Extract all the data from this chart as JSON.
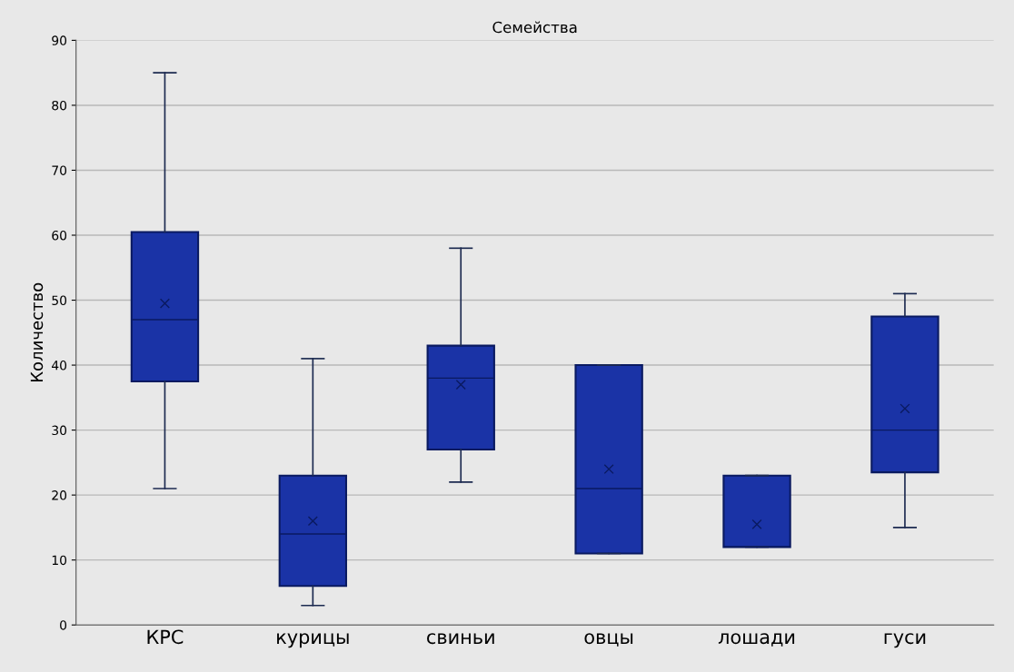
{
  "chart_data": {
    "type": "box",
    "title": "Семейства",
    "ylabel": "Количество",
    "categories": [
      "КРС",
      "курицы",
      "свиньи",
      "овцы",
      "лошади",
      "гуси"
    ],
    "boxes": [
      {
        "low": 21,
        "q1": 37.5,
        "median": 47,
        "q3": 60.5,
        "high": 85,
        "mean": 49.5
      },
      {
        "low": 3,
        "q1": 6,
        "median": 14,
        "q3": 23,
        "high": 41,
        "mean": 16
      },
      {
        "low": 22,
        "q1": 27,
        "median": 38,
        "q3": 43,
        "high": 58,
        "mean": 37
      },
      {
        "low": 11,
        "q1": 11,
        "median": 21,
        "q3": 40,
        "high": 40,
        "mean": 24
      },
      {
        "low": 12,
        "q1": 12,
        "median": 12,
        "q3": 23,
        "high": 23,
        "mean": 15.5
      },
      {
        "low": 15,
        "q1": 23.5,
        "median": 30,
        "q3": 47.5,
        "high": 51,
        "mean": 33.3
      }
    ],
    "color": "#1a33a6",
    "ylim": [
      0,
      90
    ],
    "yticks": [
      0,
      10,
      20,
      30,
      40,
      50,
      60,
      70,
      80,
      90
    ],
    "grid": "y",
    "legend": false
  }
}
